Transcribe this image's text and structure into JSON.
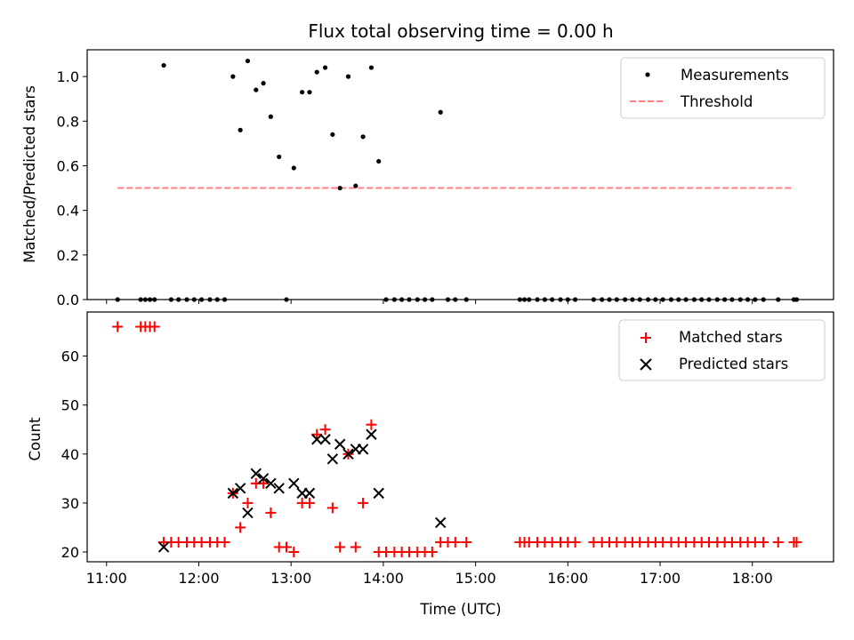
{
  "chart_data": [
    {
      "type": "scatter",
      "title": "Flux total observing time = 0.00 h",
      "ylabel": "Matched/Predicted stars",
      "xlabel": "",
      "xlim_hours": [
        10.79,
        18.88
      ],
      "ylim": [
        0,
        1.12
      ],
      "x_ticks": [
        "11:00",
        "12:00",
        "13:00",
        "14:00",
        "15:00",
        "16:00",
        "17:00",
        "18:00"
      ],
      "y_ticks": [
        "0.0",
        "0.2",
        "0.4",
        "0.6",
        "0.8",
        "1.0"
      ],
      "legend_position": "top-right",
      "legend": [
        "Measurements",
        "Threshold"
      ],
      "series": [
        {
          "name": "Measurements",
          "color": "#000000",
          "x": [
            11.12,
            11.37,
            11.42,
            11.47,
            11.52,
            11.62,
            11.7,
            11.78,
            11.87,
            11.95,
            12.03,
            12.12,
            12.2,
            12.28,
            12.37,
            12.45,
            12.53,
            12.62,
            12.7,
            12.78,
            12.87,
            12.95,
            13.03,
            13.12,
            13.2,
            13.28,
            13.37,
            13.45,
            13.53,
            13.62,
            13.7,
            13.78,
            13.87,
            13.95,
            14.03,
            14.12,
            14.2,
            14.28,
            14.37,
            14.45,
            14.53,
            14.62,
            14.7,
            14.78,
            14.9,
            15.48,
            15.53,
            15.58,
            15.67,
            15.75,
            15.83,
            15.92,
            16.0,
            16.08,
            16.28,
            16.37,
            16.45,
            16.53,
            16.62,
            16.7,
            16.78,
            16.87,
            16.95,
            17.03,
            17.12,
            17.2,
            17.28,
            17.37,
            17.45,
            17.53,
            17.62,
            17.7,
            17.78,
            17.87,
            17.95,
            18.03,
            18.12,
            18.28,
            18.45,
            18.48
          ],
          "y": [
            0,
            0,
            0,
            0,
            0,
            1.05,
            0,
            0,
            0,
            0,
            0,
            0,
            0,
            0,
            1.0,
            0.76,
            1.07,
            0.94,
            0.97,
            0.82,
            0.64,
            0,
            0.59,
            0.93,
            0.93,
            1.02,
            1.04,
            0.74,
            0.5,
            1.0,
            0.51,
            0.73,
            1.04,
            0.62,
            0,
            0,
            0,
            0,
            0,
            0,
            0,
            0.84,
            0,
            0,
            0,
            0,
            0,
            0,
            0,
            0,
            0,
            0,
            0,
            0,
            0,
            0,
            0,
            0,
            0,
            0,
            0,
            0,
            0,
            0,
            0,
            0,
            0,
            0,
            0,
            0,
            0,
            0,
            0,
            0,
            0,
            0,
            0,
            0,
            0,
            0
          ]
        },
        {
          "name": "Threshold",
          "color": "#ff8080",
          "x": [
            11.12,
            18.45
          ],
          "y": [
            0.5,
            0.5
          ]
        }
      ]
    },
    {
      "type": "scatter",
      "title": "",
      "ylabel": "Count",
      "xlabel": "Time (UTC)",
      "xlim_hours": [
        10.79,
        18.88
      ],
      "ylim": [
        18,
        69
      ],
      "x_ticks": [
        "11:00",
        "12:00",
        "13:00",
        "14:00",
        "15:00",
        "16:00",
        "17:00",
        "18:00"
      ],
      "y_ticks": [
        "20",
        "30",
        "40",
        "50",
        "60"
      ],
      "legend_position": "top-right",
      "legend": [
        "Matched stars",
        "Predicted stars"
      ],
      "series": [
        {
          "name": "Matched stars",
          "color": "#ff0000",
          "x": [
            11.12,
            11.37,
            11.42,
            11.47,
            11.52,
            11.62,
            11.7,
            11.78,
            11.87,
            11.95,
            12.03,
            12.12,
            12.2,
            12.28,
            12.37,
            12.45,
            12.53,
            12.62,
            12.7,
            12.78,
            12.87,
            12.95,
            13.03,
            13.12,
            13.2,
            13.28,
            13.37,
            13.45,
            13.53,
            13.62,
            13.7,
            13.78,
            13.87,
            13.95,
            14.03,
            14.12,
            14.2,
            14.28,
            14.37,
            14.45,
            14.53,
            14.62,
            14.7,
            14.78,
            14.9,
            15.48,
            15.53,
            15.58,
            15.67,
            15.75,
            15.83,
            15.92,
            16.0,
            16.08,
            16.28,
            16.37,
            16.45,
            16.53,
            16.62,
            16.7,
            16.78,
            16.87,
            16.95,
            17.03,
            17.12,
            17.2,
            17.28,
            17.37,
            17.45,
            17.53,
            17.62,
            17.7,
            17.78,
            17.87,
            17.95,
            18.03,
            18.12,
            18.28,
            18.45,
            18.48
          ],
          "y": [
            66,
            66,
            66,
            66,
            66,
            22,
            22,
            22,
            22,
            22,
            22,
            22,
            22,
            22,
            32,
            25,
            30,
            34,
            34,
            28,
            21,
            21,
            20,
            30,
            30,
            44,
            45,
            29,
            21,
            40,
            21,
            30,
            46,
            20,
            20,
            20,
            20,
            20,
            20,
            20,
            20,
            22,
            22,
            22,
            22,
            22,
            22,
            22,
            22,
            22,
            22,
            22,
            22,
            22,
            22,
            22,
            22,
            22,
            22,
            22,
            22,
            22,
            22,
            22,
            22,
            22,
            22,
            22,
            22,
            22,
            22,
            22,
            22,
            22,
            22,
            22,
            22,
            22,
            22,
            22
          ]
        },
        {
          "name": "Predicted stars",
          "color": "#000000",
          "x": [
            11.62,
            12.37,
            12.45,
            12.53,
            12.62,
            12.7,
            12.78,
            12.87,
            13.03,
            13.12,
            13.2,
            13.28,
            13.37,
            13.45,
            13.53,
            13.62,
            13.7,
            13.78,
            13.87,
            13.95,
            14.62
          ],
          "y": [
            21,
            32,
            33,
            28,
            36,
            35,
            34,
            33,
            34,
            32,
            32,
            43,
            43,
            39,
            42,
            40,
            41,
            41,
            44,
            32,
            26
          ]
        }
      ]
    }
  ]
}
